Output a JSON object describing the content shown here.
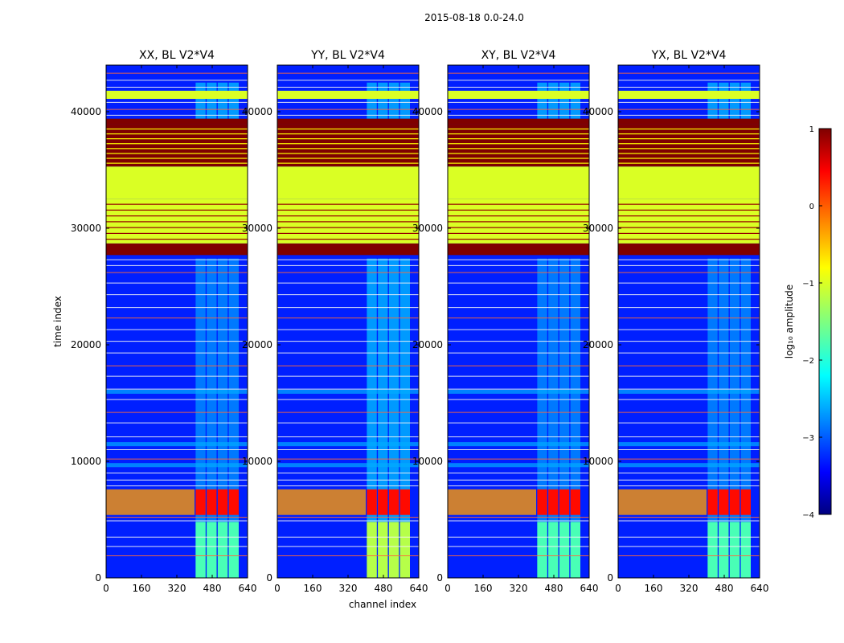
{
  "chart_data": {
    "type": "heatmap",
    "title": "2015-08-18 0.0-24.0",
    "xlabel": "channel index",
    "ylabel": "time index",
    "xlim": [
      0,
      640
    ],
    "ylim": [
      0,
      44000
    ],
    "x_ticks": [
      "0",
      "160",
      "320",
      "480",
      "640"
    ],
    "x_tick_values": [
      0,
      160,
      320,
      480,
      640
    ],
    "y_ticks": [
      "0",
      "10000",
      "20000",
      "30000",
      "40000"
    ],
    "y_tick_values": [
      0,
      10000,
      20000,
      30000,
      40000
    ],
    "panels": [
      {
        "title": "XX, BL V2*V4",
        "pol": "XX"
      },
      {
        "title": "YY, BL V2*V4",
        "pol": "YY"
      },
      {
        "title": "XY, BL V2*V4",
        "pol": "XY"
      },
      {
        "title": "YX, BL V2*V4",
        "pol": "YX"
      }
    ],
    "colorbar": {
      "label": "log₁₀ amplitude",
      "range": [
        -4,
        1
      ],
      "ticks": [
        "1",
        "0",
        "−1",
        "−2",
        "−3",
        "−4"
      ],
      "tick_values": [
        1,
        0,
        -1,
        -2,
        -3,
        -4
      ],
      "colormap": "jet"
    },
    "flagged_bands": [
      {
        "t0": 27700,
        "t1": 28700,
        "value": 1.0
      },
      {
        "t0": 28700,
        "t1": 32500,
        "value": -1.0
      },
      {
        "t0": 32500,
        "t1": 35300,
        "value": -1.0
      },
      {
        "t0": 35300,
        "t1": 38900,
        "value": 1.0
      },
      {
        "t0": 38900,
        "t1": 39400,
        "value": 1.0
      },
      {
        "t0": 41100,
        "t1": 41800,
        "value": -1.0
      }
    ],
    "active_channels": [
      {
        "c0": 405,
        "c1": 450
      },
      {
        "c0": 455,
        "c1": 500
      },
      {
        "c0": 505,
        "c1": 550
      },
      {
        "c0": 555,
        "c1": 600
      }
    ],
    "rfi_time_band": {
      "t0": 5400,
      "t1": 7600,
      "value": -0.3
    }
  }
}
